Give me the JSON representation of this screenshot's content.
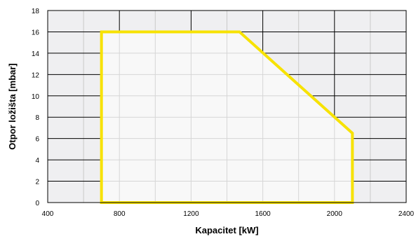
{
  "chart_data": {
    "type": "area",
    "title": "",
    "xlabel": "Kapacitet [kW]",
    "ylabel": "Otpor ložišta  [mbar]",
    "xlim": [
      400,
      2400
    ],
    "ylim": [
      0,
      18
    ],
    "x_ticks": [
      400,
      800,
      1200,
      1600,
      2000,
      2400
    ],
    "y_ticks": [
      0,
      2,
      4,
      6,
      8,
      10,
      12,
      14,
      16,
      18
    ],
    "grid": true,
    "minor_x_step": 200,
    "series": [
      {
        "x": [
          700,
          700,
          1470,
          2100,
          2100,
          700
        ],
        "y": [
          0,
          16,
          16,
          6.5,
          0,
          0
        ]
      }
    ],
    "colors": {
      "working_field_stroke": "#f7e200",
      "working_field_fill": "#f8f8f8",
      "plot_background": "#efeff1",
      "major_grid": "#000000",
      "minor_grid": "#c9c9c9",
      "minor_grid_inside": "#d6d6d6"
    }
  }
}
